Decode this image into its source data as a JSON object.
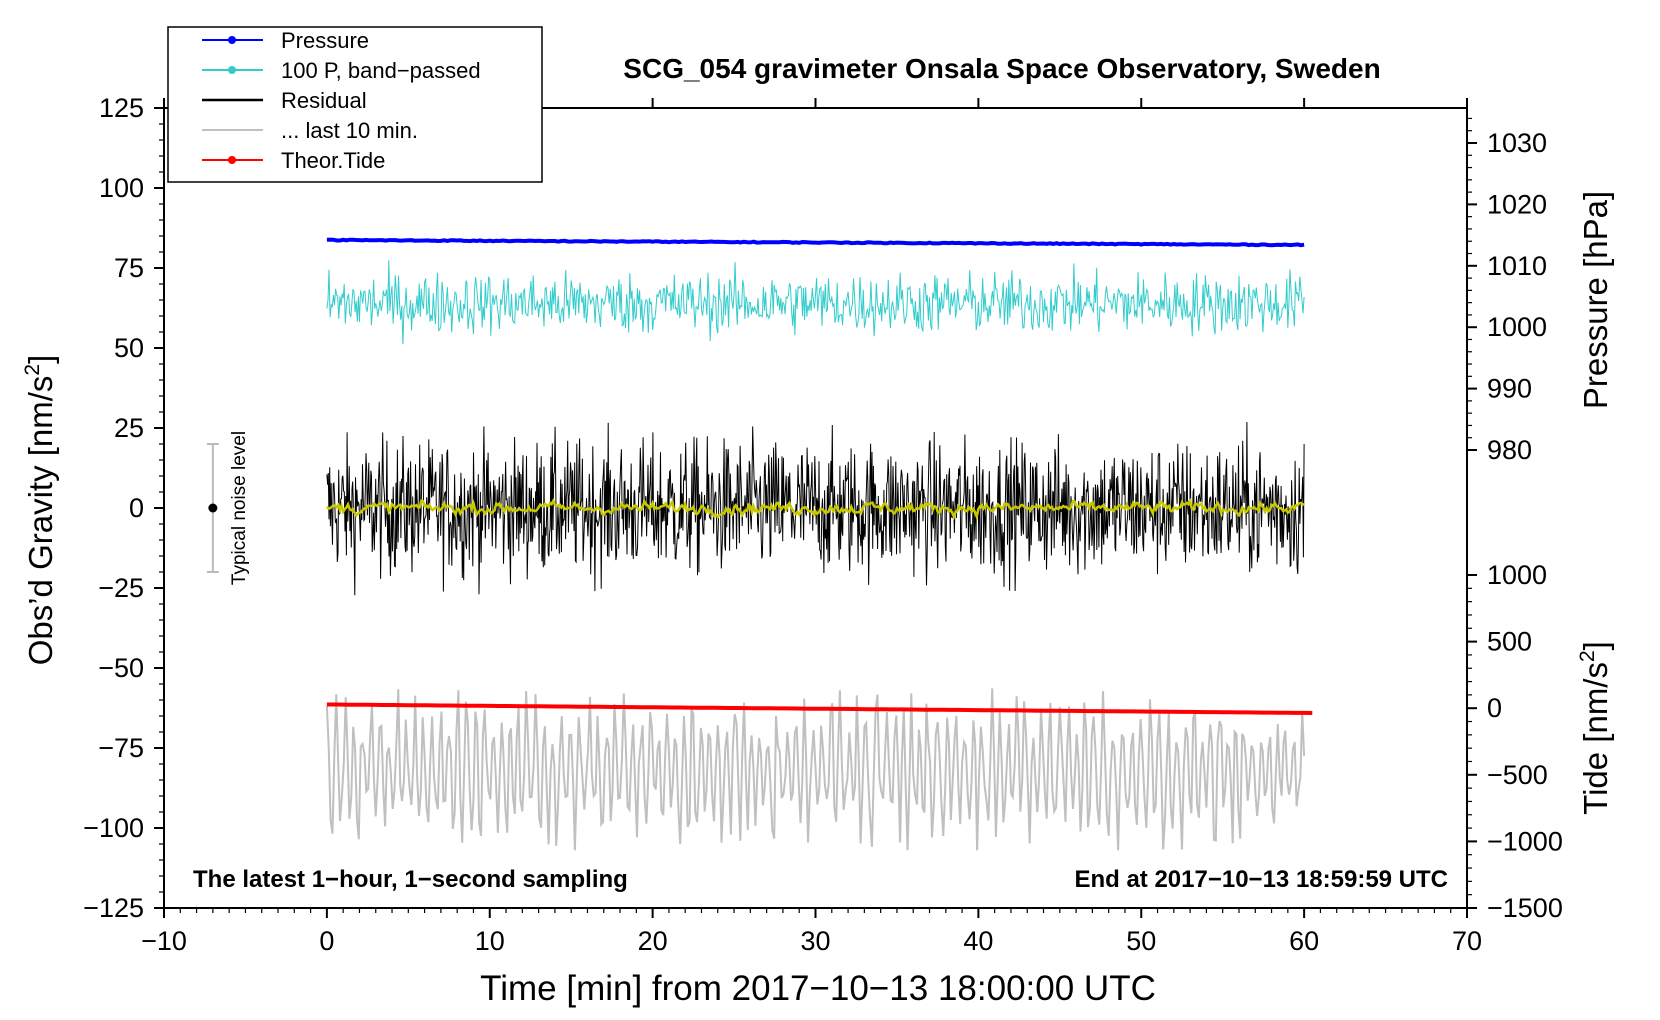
{
  "chart_data": {
    "type": "line",
    "title": "SCG_054 gravimeter Onsala Space Observatory, Sweden",
    "xlabel": "Time [min] from 2017−10−13 18:00:00 UTC",
    "ylabel_main": "Obs’d Gravity [nm/s",
    "ylabel_sup": "2",
    "ylabel_close": "]",
    "ylabel_pressure": "Pressure [hPa]",
    "ylabel_tide": "Tide [nm/s",
    "ylabel_tide_sup": "2",
    "ylabel_tide_close": "]",
    "xlim": [
      -10,
      70
    ],
    "ylim": [
      -125,
      125
    ],
    "x_ticks": [
      -10,
      0,
      10,
      20,
      30,
      40,
      50,
      60,
      70
    ],
    "x_tick_labels": [
      "−10",
      "0",
      "10",
      "20",
      "30",
      "40",
      "50",
      "60",
      "70"
    ],
    "y_ticks": [
      125,
      100,
      75,
      50,
      25,
      0,
      -25,
      -50,
      -75,
      -100,
      -125
    ],
    "y_tick_labels": [
      "125",
      "100",
      "75",
      "50",
      "25",
      "0",
      "−25",
      "−50",
      "−75",
      "−100",
      "−125"
    ],
    "pressure_axis": {
      "range": [
        980,
        1030
      ],
      "ticks": [
        1030,
        1020,
        1010,
        1000,
        990,
        980
      ],
      "tick_labels": [
        "1030",
        "1020",
        "1010",
        "1000",
        "990",
        "980"
      ]
    },
    "tide_axis": {
      "range": [
        -1500,
        1000
      ],
      "ticks": [
        1000,
        500,
        0,
        -500,
        -1000,
        -1500
      ],
      "tick_labels": [
        "1000",
        "500",
        "0",
        "−500",
        "−1000",
        "−1500"
      ]
    },
    "noise_bar": {
      "label": "Typical noise level",
      "center": 0,
      "half_range": 20,
      "x": -7
    },
    "legend": [
      {
        "name": "Pressure",
        "color": "#0000ff",
        "marker": true
      },
      {
        "name": "100 P, band−passed",
        "color": "#33cccc",
        "marker": true
      },
      {
        "name": "Residual",
        "color": "#000000",
        "marker": false
      },
      {
        "name": "... last 10 min.",
        "color": "#c0c0c0",
        "marker": false
      },
      {
        "name": "Theor.Tide",
        "color": "#ff0000",
        "marker": true
      }
    ],
    "series": [
      {
        "name": "Pressure",
        "axis": "pressure",
        "color": "#0000ff",
        "x_range": [
          0,
          60
        ],
        "start": 1014.2,
        "end": 1013.4,
        "noise": 0.15
      },
      {
        "name": "100 P, band−passed",
        "axis": "gravity",
        "color": "#33cccc",
        "x_range": [
          0,
          60
        ],
        "mean": 64,
        "amplitude": 6,
        "min": 40,
        "max": 79
      },
      {
        "name": "Residual",
        "axis": "gravity",
        "color": "#000000",
        "x_range": [
          0,
          60
        ],
        "mean": 0,
        "amplitude": 14,
        "min": -40,
        "max": 43
      },
      {
        "name": "Residual smoothed",
        "axis": "gravity",
        "color": "#c8c800",
        "x_range": [
          0,
          60
        ],
        "mean": 0,
        "amplitude": 1.5
      },
      {
        "name": "... last 10 min.",
        "axis": "gravity",
        "color": "#c0c0c0",
        "x_range": [
          0,
          60
        ],
        "mean": -82,
        "amplitude": 14,
        "min": -107,
        "max": -42
      },
      {
        "name": "Theor.Tide",
        "axis": "tide",
        "color": "#ff0000",
        "x_range": [
          0,
          60.5
        ],
        "start": 28,
        "end": -36
      }
    ],
    "annotations": {
      "left": "The latest 1−hour, 1−second sampling",
      "right": "End at 2017−10−13 18:59:59 UTC"
    }
  }
}
